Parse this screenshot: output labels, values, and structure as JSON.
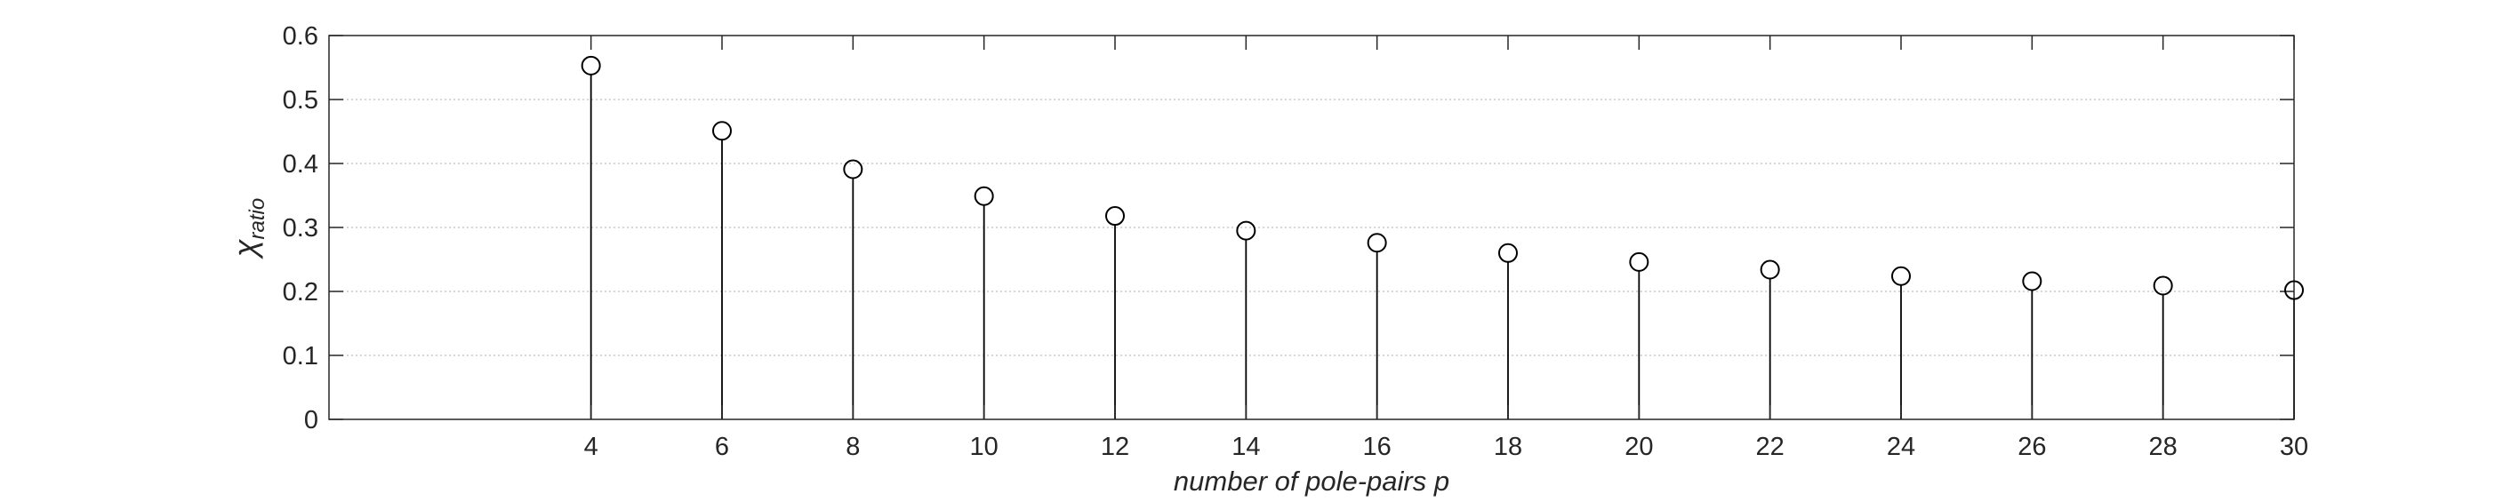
{
  "chart_data": {
    "type": "stem",
    "title": "",
    "xlabel": "number of pole-pairs p",
    "ylabel_symbol": "χ",
    "ylabel_subscript": "ratio",
    "xlim": [
      0,
      30
    ],
    "ylim": [
      0,
      0.6
    ],
    "xticks": [
      4,
      6,
      8,
      10,
      12,
      14,
      16,
      18,
      20,
      22,
      24,
      26,
      28,
      30
    ],
    "yticks": [
      0,
      0.1,
      0.2,
      0.3,
      0.4,
      0.5,
      0.6
    ],
    "ytick_labels": [
      "0",
      "0.1",
      "0.2",
      "0.3",
      "0.4",
      "0.5",
      "0.6"
    ],
    "grid": "horizontal-dotted",
    "marker": "open-circle",
    "color": "#000000",
    "x": [
      4,
      6,
      8,
      10,
      12,
      14,
      16,
      18,
      20,
      22,
      24,
      26,
      28,
      30
    ],
    "y": [
      0.553,
      0.451,
      0.391,
      0.349,
      0.318,
      0.295,
      0.276,
      0.26,
      0.246,
      0.234,
      0.224,
      0.216,
      0.209,
      0.202
    ]
  }
}
